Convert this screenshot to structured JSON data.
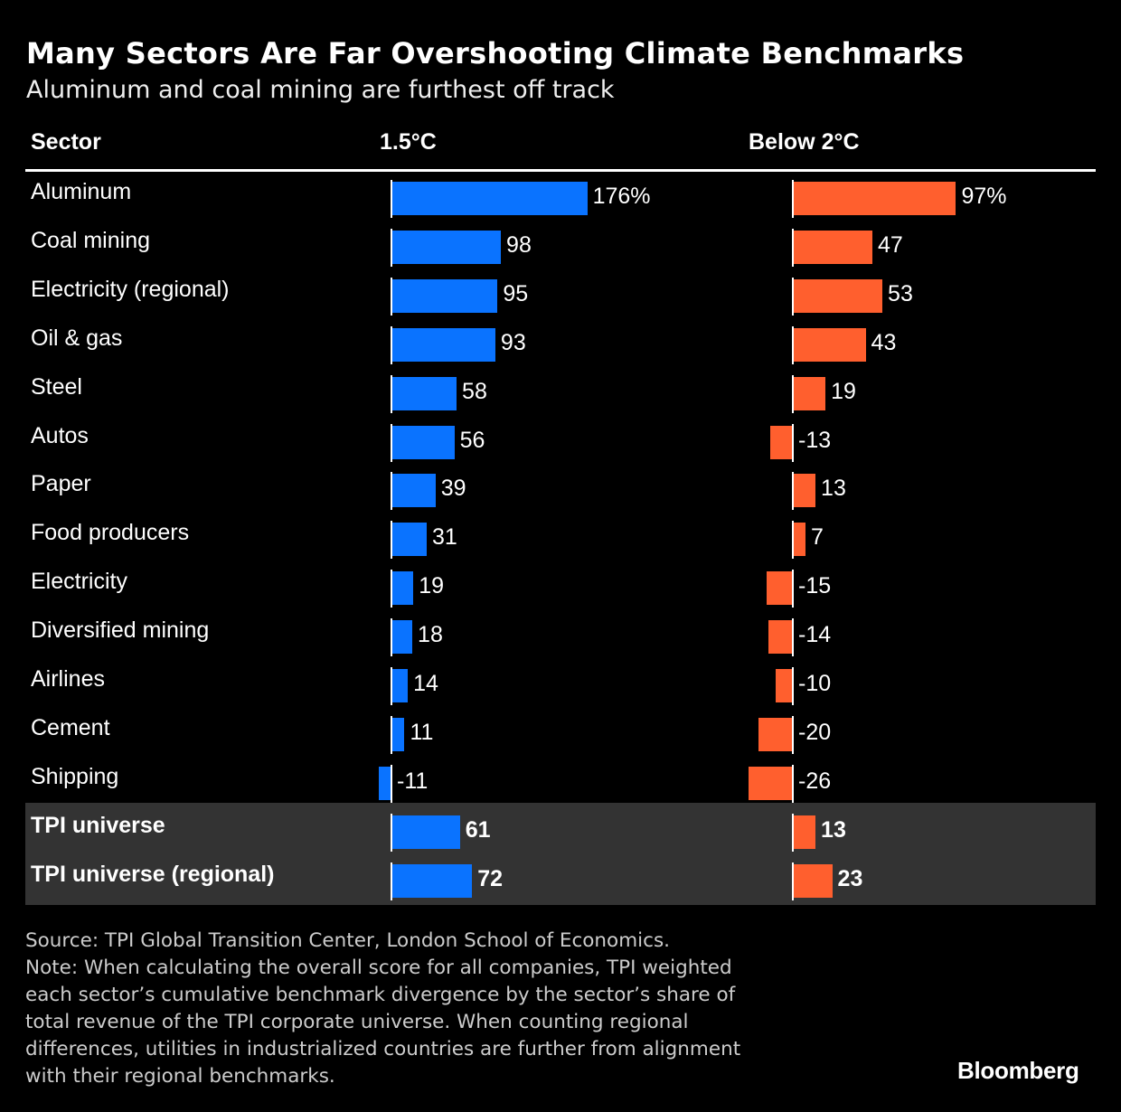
{
  "header": {
    "title": "Many Sectors Are Far Overshooting Climate Benchmarks",
    "subtitle": "Aluminum and coal mining are furthest off track"
  },
  "columns": {
    "sector": "Sector",
    "c15": "1.5°C",
    "c2": "Below 2°C"
  },
  "colors": {
    "c15_bar": "#0a73ff",
    "c2_bar": "#ff5f2e",
    "highlight_bg": "#333333"
  },
  "chart_data": {
    "type": "bar",
    "title": "Many Sectors Are Far Overshooting Climate Benchmarks",
    "subtitle": "Aluminum and coal mining are furthest off track",
    "unit": "%",
    "categories": [
      "Aluminum",
      "Coal mining",
      "Electricity (regional)",
      "Oil & gas",
      "Steel",
      "Autos",
      "Paper",
      "Food producers",
      "Electricity",
      "Diversified mining",
      "Airlines",
      "Cement",
      "Shipping",
      "TPI universe",
      "TPI universe (regional)"
    ],
    "highlighted": [
      "TPI universe",
      "TPI universe (regional)"
    ],
    "series": [
      {
        "name": "1.5°C",
        "values": [
          176,
          98,
          95,
          93,
          58,
          56,
          39,
          31,
          19,
          18,
          14,
          11,
          -11,
          61,
          72
        ],
        "labels": [
          "176%",
          "98",
          "95",
          "93",
          "58",
          "56",
          "39",
          "31",
          "19",
          "18",
          "14",
          "11",
          "-11",
          "61",
          "72"
        ]
      },
      {
        "name": "Below 2°C",
        "values": [
          97,
          47,
          53,
          43,
          19,
          -13,
          13,
          7,
          -15,
          -14,
          -10,
          -20,
          -26,
          13,
          23
        ],
        "labels": [
          "97%",
          "47",
          "53",
          "43",
          "19",
          "-13",
          "13",
          "7",
          "-15",
          "-14",
          "-10",
          "-20",
          "-26",
          "13",
          "23"
        ]
      }
    ]
  },
  "footer": {
    "lines": [
      "Source: TPI Global Transition Center, London School of Economics.",
      "Note: When calculating the overall score for all companies, TPI weighted",
      "each sector’s cumulative benchmark divergence by the sector’s share of",
      "total revenue of the TPI corporate universe. When counting regional",
      "differences, utilities in industrialized countries are further from alignment",
      "with their regional benchmarks."
    ],
    "logo": "Bloomberg"
  }
}
